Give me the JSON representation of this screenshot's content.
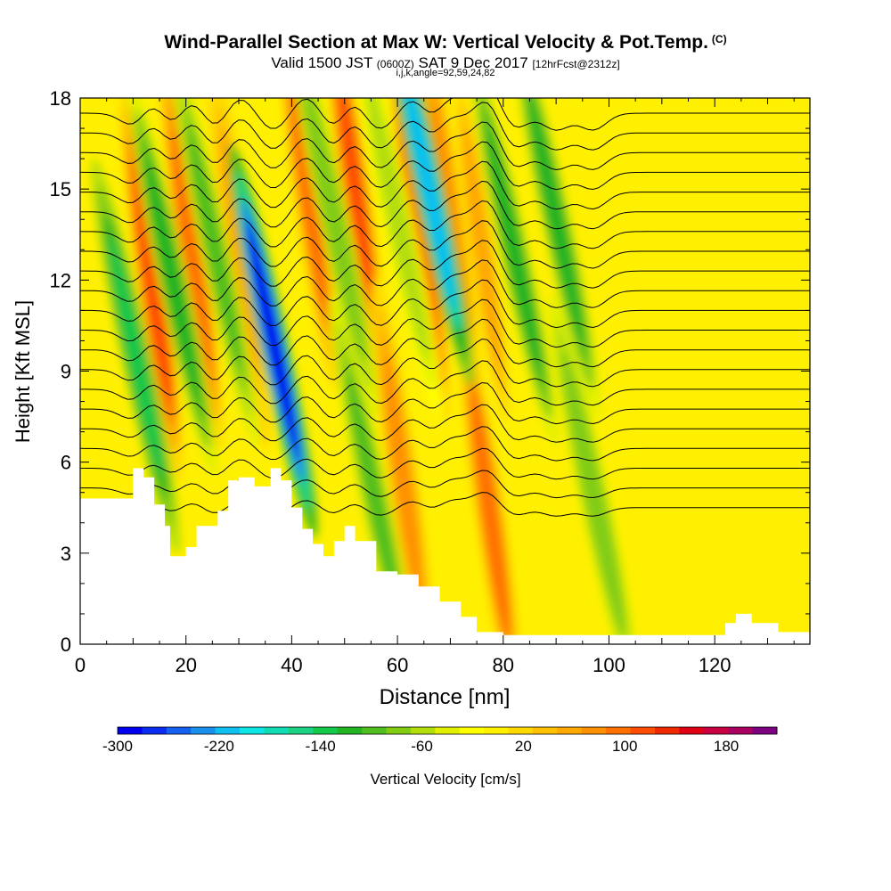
{
  "header": {
    "title": "Wind-Parallel Section at Max W: Vertical Velocity & Pot.Temp.",
    "copyright": "(C)",
    "subtitle_a": "Valid 1500 JST",
    "subtitle_b": "(0600Z)",
    "subtitle_c": "SAT 9 Dec 2017",
    "subtitle_d": "[12hrFcst@2312z]",
    "params": "i,j,k,angle=92,59,24,82"
  },
  "chart_data": {
    "type": "heatmap",
    "title": "Wind-Parallel Section at Max W: Vertical Velocity & Pot.Temp.",
    "xlabel": "Distance [nm]",
    "ylabel": "Height [Kft MSL]",
    "xlim": [
      0,
      138
    ],
    "ylim": [
      0,
      18
    ],
    "x_ticks": [
      0,
      20,
      40,
      60,
      80,
      100,
      120
    ],
    "y_ticks": [
      0,
      3,
      6,
      9,
      12,
      15,
      18
    ],
    "colorbar": {
      "label": "Vertical Velocity [cm/s]",
      "tick_values": [
        -300,
        -220,
        -140,
        -60,
        20,
        100,
        180
      ],
      "tick_labels": [
        "-300",
        "-220",
        "-140",
        "-60",
        "20",
        "100",
        "180"
      ],
      "range": [
        -300,
        220
      ],
      "step": 20,
      "colors": [
        "#0000ee",
        "#0a2cf0",
        "#1660f0",
        "#1a90ee",
        "#10c0f0",
        "#0ee6e6",
        "#10dcb4",
        "#1ad282",
        "#14c84a",
        "#22b422",
        "#50be1e",
        "#82cc14",
        "#b4de0a",
        "#e0f000",
        "#ffff00",
        "#fff000",
        "#ffd800",
        "#ffc000",
        "#ffa800",
        "#ff9000",
        "#ff7000",
        "#ff4c00",
        "#f02800",
        "#e00014",
        "#c80040",
        "#aa0060",
        "#7d0080"
      ]
    },
    "terrain_profile": {
      "x": [
        0,
        8,
        10,
        12,
        14,
        16,
        17,
        20,
        22,
        26,
        28,
        30,
        33,
        36,
        38,
        40,
        42,
        44,
        46,
        48,
        50,
        52,
        56,
        60,
        64,
        68,
        72,
        75,
        80,
        90,
        100,
        110,
        120,
        122,
        124,
        127,
        129,
        132,
        134,
        138
      ],
      "height_kft": [
        4.8,
        4.8,
        5.8,
        5.5,
        4.6,
        3.9,
        2.9,
        3.2,
        3.9,
        4.4,
        5.4,
        5.5,
        5.2,
        5.8,
        5.4,
        4.5,
        3.8,
        3.3,
        2.9,
        3.4,
        3.9,
        3.4,
        2.4,
        2.3,
        1.9,
        1.4,
        0.9,
        0.4,
        0.3,
        0.3,
        0.3,
        0.3,
        0.3,
        0.7,
        1.0,
        0.7,
        0.7,
        0.4,
        0.4,
        0.4
      ]
    },
    "updrafts": [
      {
        "x": 13.5,
        "y": 12.0,
        "peak_cm_s": 130
      },
      {
        "x": 21.0,
        "y": 13.0,
        "peak_cm_s": 110
      },
      {
        "x": 30.0,
        "y": 13.0,
        "peak_cm_s": 70
      },
      {
        "x": 43.0,
        "y": 15.0,
        "peak_cm_s": 100
      },
      {
        "x": 52.0,
        "y": 15.0,
        "peak_cm_s": 120
      },
      {
        "x": 61.0,
        "y": 5.5,
        "peak_cm_s": 80
      },
      {
        "x": 64.0,
        "y": 14.0,
        "peak_cm_s": 110
      },
      {
        "x": 70.0,
        "y": 14.0,
        "peak_cm_s": 90
      },
      {
        "x": 77.5,
        "y": 4.3,
        "peak_cm_s": 100
      },
      {
        "x": 76.0,
        "y": 13.0,
        "peak_cm_s": 60
      }
    ],
    "downdrafts": [
      {
        "x": 10.5,
        "y": 9.5,
        "peak_cm_s": -140
      },
      {
        "x": 17.5,
        "y": 12.0,
        "peak_cm_s": -120
      },
      {
        "x": 25.5,
        "y": 13.0,
        "peak_cm_s": -100
      },
      {
        "x": 36.5,
        "y": 10.0,
        "peak_cm_s": -290
      },
      {
        "x": 48.0,
        "y": 14.0,
        "peak_cm_s": -80
      },
      {
        "x": 55.5,
        "y": 5.0,
        "peak_cm_s": -90
      },
      {
        "x": 60.0,
        "y": 14.0,
        "peak_cm_s": -60
      },
      {
        "x": 66.0,
        "y": 15.0,
        "peak_cm_s": -210
      },
      {
        "x": 82.0,
        "y": 13.0,
        "peak_cm_s": -110
      },
      {
        "x": 90.0,
        "y": 14.0,
        "peak_cm_s": -120
      },
      {
        "x": 97.0,
        "y": 5.0,
        "peak_cm_s": -80
      }
    ],
    "isentropes": {
      "start_kft": 4.5,
      "spacing_kft": 0.65,
      "count": 21,
      "wave_amplitude_kft": 0.55
    }
  }
}
